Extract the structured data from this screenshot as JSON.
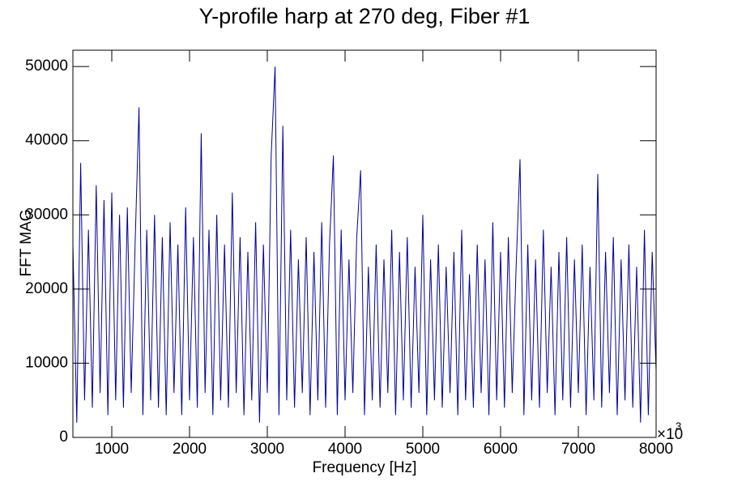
{
  "chart_data": {
    "type": "line",
    "title": "Y-profile harp at 270 deg, Fiber #1",
    "x_label": "Frequency [Hz]",
    "y_label": "FFT MAG",
    "x_multiplier": {
      "base": "×10",
      "exponent": "3"
    },
    "xlim": [
      500,
      8000
    ],
    "ylim": [
      0,
      52200
    ],
    "xticks": [
      1000,
      2000,
      3000,
      4000,
      5000,
      6000,
      7000,
      8000
    ],
    "yticks": [
      0,
      10000,
      20000,
      30000,
      40000,
      50000
    ],
    "x": [
      500,
      550,
      600,
      650,
      700,
      750,
      800,
      850,
      900,
      950,
      1000,
      1050,
      1100,
      1150,
      1200,
      1250,
      1300,
      1350,
      1400,
      1450,
      1500,
      1550,
      1600,
      1650,
      1700,
      1750,
      1800,
      1850,
      1900,
      1950,
      2000,
      2050,
      2100,
      2150,
      2200,
      2250,
      2300,
      2350,
      2400,
      2450,
      2500,
      2550,
      2600,
      2650,
      2700,
      2750,
      2800,
      2850,
      2900,
      2950,
      3000,
      3050,
      3100,
      3150,
      3200,
      3250,
      3300,
      3350,
      3400,
      3450,
      3500,
      3550,
      3600,
      3650,
      3700,
      3750,
      3800,
      3850,
      3900,
      3950,
      4000,
      4050,
      4100,
      4150,
      4200,
      4250,
      4300,
      4350,
      4400,
      4450,
      4500,
      4550,
      4600,
      4650,
      4700,
      4750,
      4800,
      4850,
      4900,
      4950,
      5000,
      5050,
      5100,
      5150,
      5200,
      5250,
      5300,
      5350,
      5400,
      5450,
      5500,
      5550,
      5600,
      5650,
      5700,
      5750,
      5800,
      5850,
      5900,
      5950,
      6000,
      6050,
      6100,
      6150,
      6200,
      6250,
      6300,
      6350,
      6400,
      6450,
      6500,
      6550,
      6600,
      6650,
      6700,
      6750,
      6800,
      6850,
      6900,
      6950,
      7000,
      7050,
      7100,
      7150,
      7200,
      7250,
      7300,
      7350,
      7400,
      7450,
      7500,
      7550,
      7600,
      7650,
      7700,
      7750,
      7800,
      7850,
      7900,
      7950,
      8000
    ],
    "series": [
      {
        "color": "#000099",
        "values": [
          26000,
          2000,
          37000,
          5000,
          28000,
          4000,
          34000,
          6000,
          32000,
          3000,
          33000,
          5000,
          30000,
          4000,
          31000,
          6000,
          26000,
          44500,
          3000,
          28000,
          5000,
          30000,
          4000,
          27000,
          3000,
          29000,
          6000,
          26000,
          3000,
          31000,
          5000,
          27000,
          4000,
          41000,
          6000,
          28000,
          3000,
          30000,
          5000,
          26000,
          4000,
          33000,
          6000,
          27000,
          3000,
          25000,
          5000,
          29000,
          2000,
          26000,
          6000,
          38000,
          50000,
          3000,
          42000,
          5000,
          28000,
          4000,
          24000,
          6000,
          27000,
          3000,
          25000,
          5000,
          29000,
          4000,
          26000,
          38000,
          3000,
          28000,
          5000,
          24000,
          6000,
          27000,
          36000,
          3000,
          23000,
          5000,
          26000,
          4000,
          24000,
          6000,
          28000,
          3000,
          25000,
          5000,
          27000,
          4000,
          23000,
          6000,
          30000,
          3000,
          24000,
          5000,
          26000,
          4000,
          23000,
          6000,
          25000,
          3000,
          28000,
          5000,
          22000,
          4000,
          26000,
          6000,
          24000,
          3000,
          29000,
          5000,
          25000,
          4000,
          27000,
          6000,
          23000,
          37500,
          3000,
          26000,
          5000,
          24000,
          4000,
          28000,
          6000,
          23000,
          3000,
          25000,
          5000,
          27000,
          4000,
          24000,
          6000,
          26000,
          3000,
          23000,
          5000,
          35500,
          4000,
          25000,
          6000,
          27000,
          3000,
          24000,
          5000,
          26000,
          4000,
          23000,
          2000,
          28000,
          3000,
          25000,
          9000
        ]
      }
    ]
  }
}
